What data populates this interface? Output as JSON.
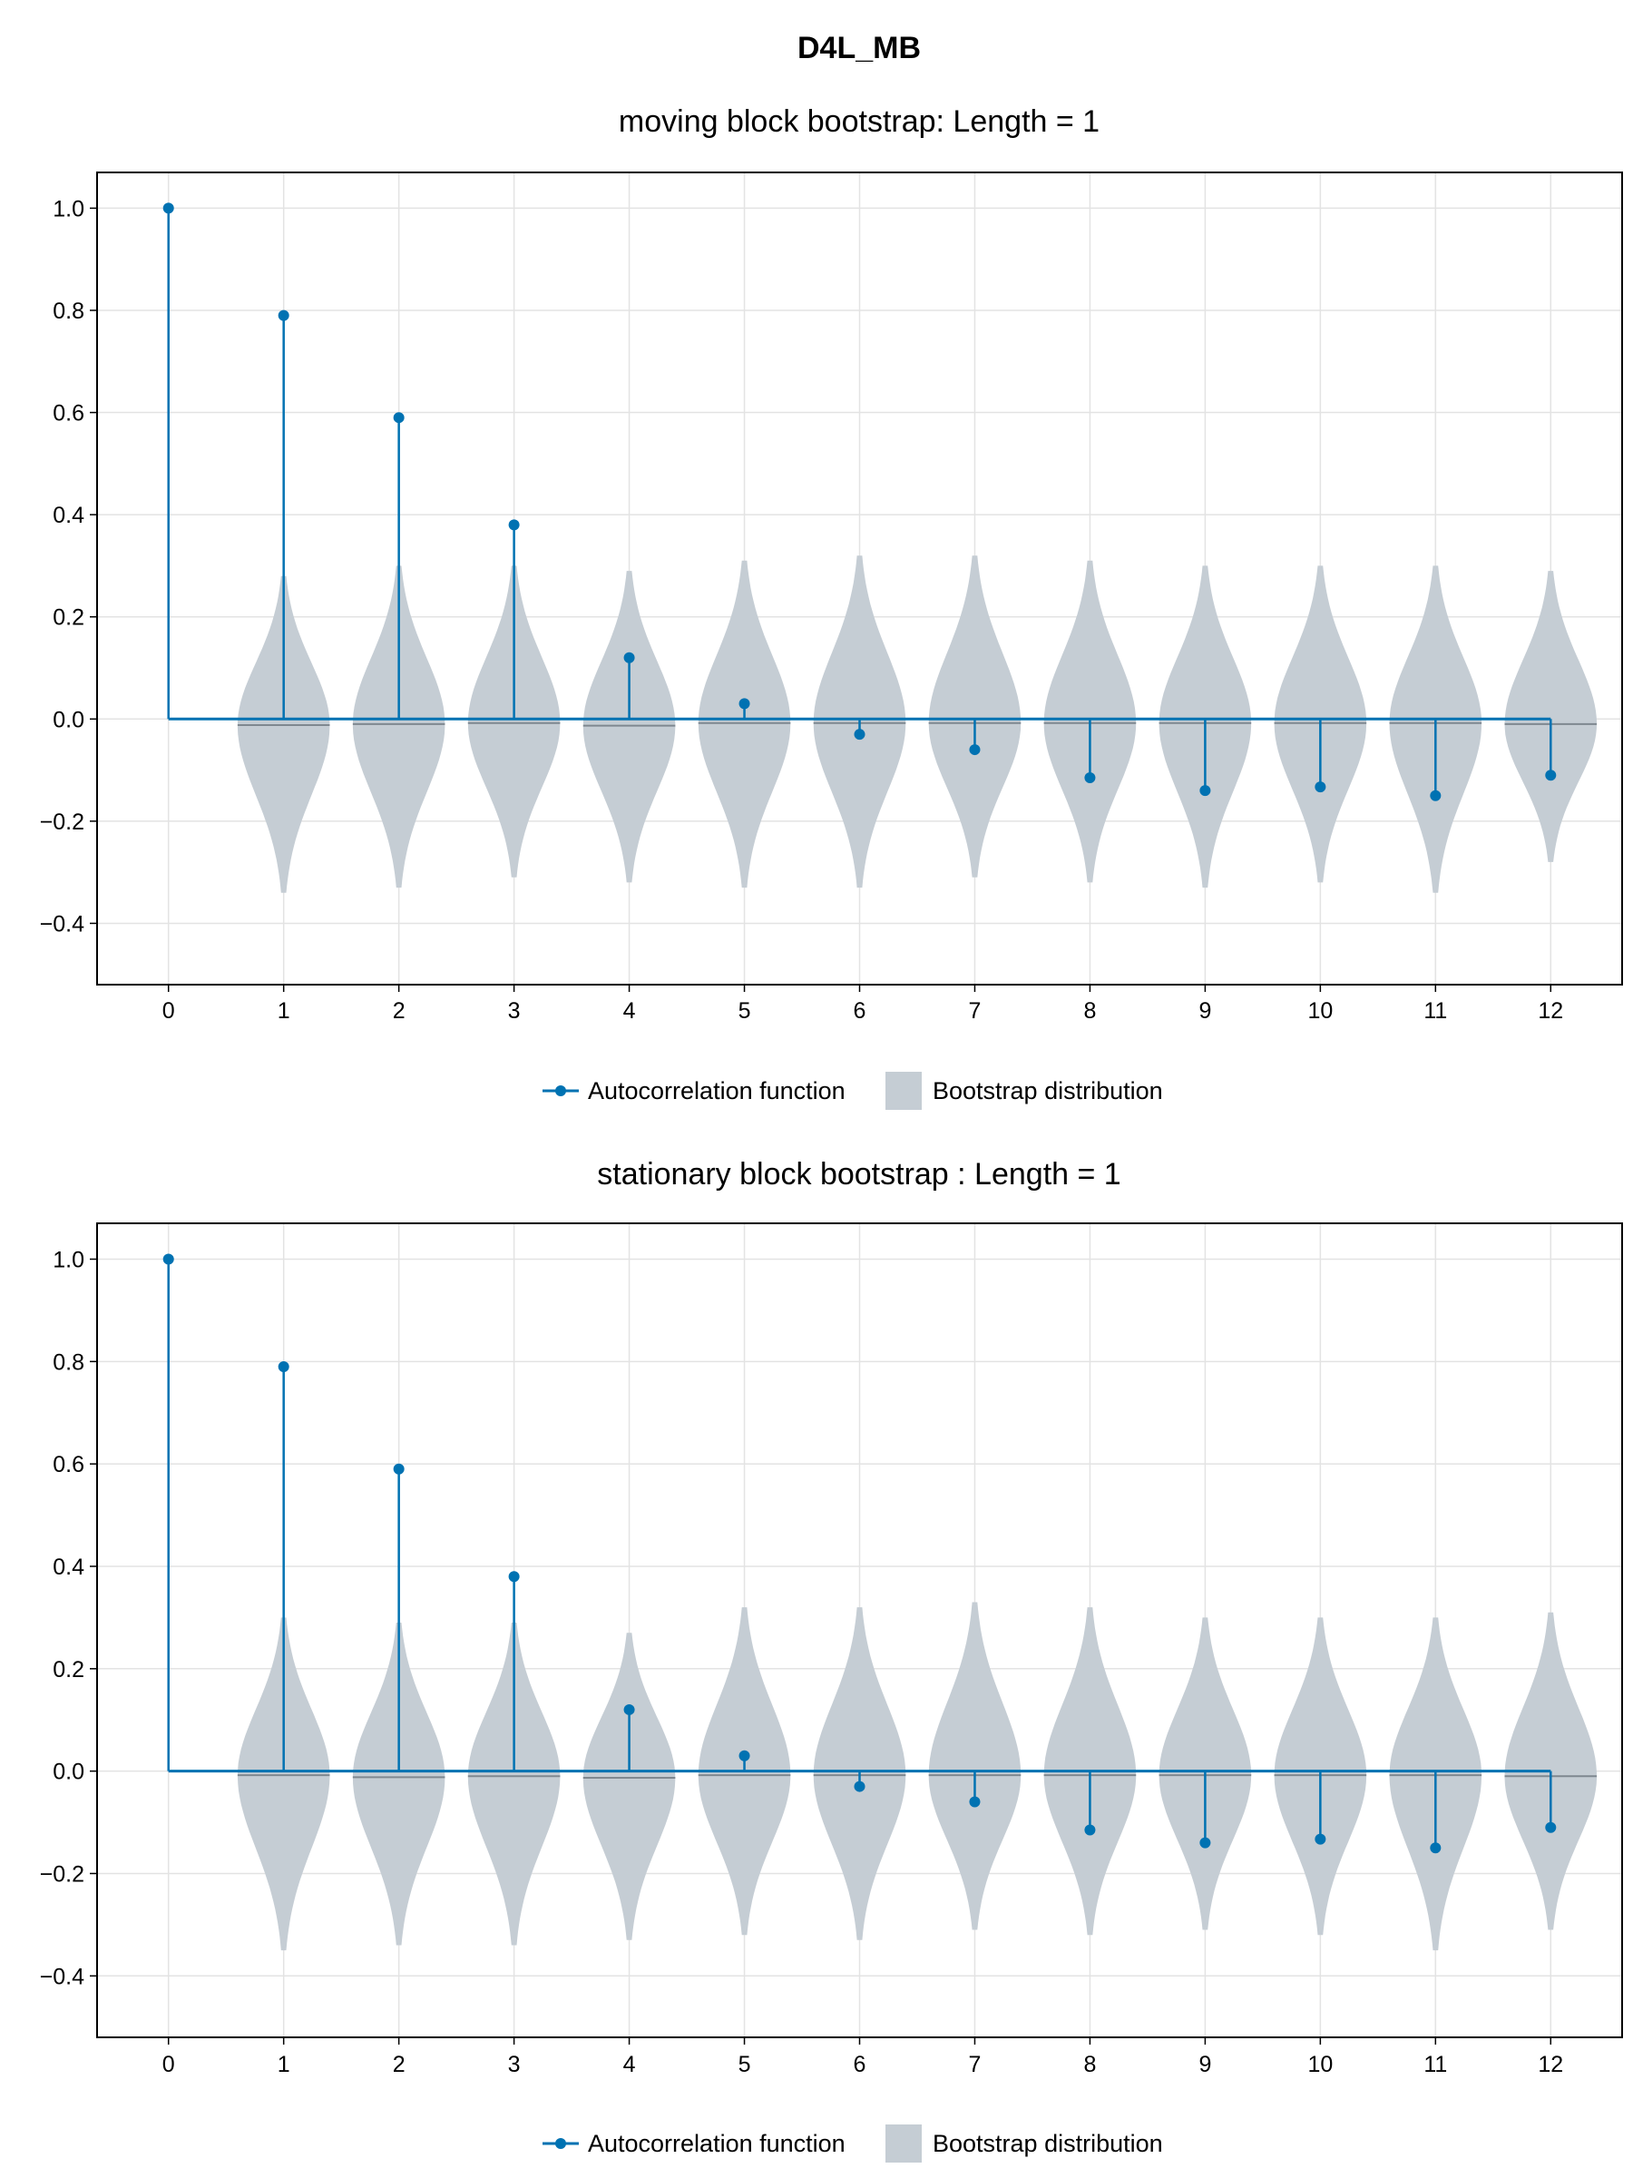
{
  "figure": {
    "title": "D4L_MB"
  },
  "legend": {
    "acf_label": "Autocorrelation function",
    "bootstrap_label": "Bootstrap distribution"
  },
  "colors": {
    "acf": "#0072b2",
    "violin": "#c5cdd4",
    "median_line": "#7f8890",
    "grid": "#e3e3e3",
    "axis": "#000000"
  },
  "chart_data": [
    {
      "type": "stem+violin",
      "title": "moving block bootstrap: Length = 1",
      "xlabel": "",
      "ylabel": "",
      "xlim": [
        -0.62,
        12.62
      ],
      "ylim": [
        -0.52,
        1.07
      ],
      "xticks": [
        0,
        1,
        2,
        3,
        4,
        5,
        6,
        7,
        8,
        9,
        10,
        11,
        12
      ],
      "yticks": [
        -0.4,
        -0.2,
        0.0,
        0.2,
        0.4,
        0.6,
        0.8,
        1.0
      ],
      "ytick_labels": [
        "−0.4",
        "−0.2",
        "0.0",
        "0.2",
        "0.4",
        "0.6",
        "0.8",
        "1.0"
      ],
      "grid": true,
      "legend_position": "bottom-center",
      "series": [
        {
          "name": "Autocorrelation function",
          "lags": [
            0,
            1,
            2,
            3,
            4,
            5,
            6,
            7,
            8,
            9,
            10,
            11,
            12
          ],
          "values": [
            1.0,
            0.79,
            0.59,
            0.38,
            0.12,
            0.03,
            -0.03,
            -0.06,
            -0.115,
            -0.14,
            -0.133,
            -0.15,
            -0.11
          ]
        },
        {
          "name": "Bootstrap distribution",
          "lags": [
            1,
            2,
            3,
            4,
            5,
            6,
            7,
            8,
            9,
            10,
            11,
            12
          ],
          "min": [
            -0.34,
            -0.33,
            -0.31,
            -0.32,
            -0.33,
            -0.33,
            -0.31,
            -0.32,
            -0.33,
            -0.32,
            -0.34,
            -0.28
          ],
          "max": [
            0.28,
            0.3,
            0.3,
            0.29,
            0.31,
            0.32,
            0.32,
            0.31,
            0.3,
            0.3,
            0.3,
            0.29
          ],
          "median": [
            -0.012,
            -0.01,
            -0.008,
            -0.013,
            -0.008,
            -0.008,
            -0.008,
            -0.008,
            -0.008,
            -0.008,
            -0.008,
            -0.01
          ]
        }
      ]
    },
    {
      "type": "stem+violin",
      "title": "stationary block bootstrap : Length = 1",
      "xlabel": "",
      "ylabel": "",
      "xlim": [
        -0.62,
        12.62
      ],
      "ylim": [
        -0.52,
        1.07
      ],
      "xticks": [
        0,
        1,
        2,
        3,
        4,
        5,
        6,
        7,
        8,
        9,
        10,
        11,
        12
      ],
      "yticks": [
        -0.4,
        -0.2,
        0.0,
        0.2,
        0.4,
        0.6,
        0.8,
        1.0
      ],
      "ytick_labels": [
        "−0.4",
        "−0.2",
        "0.0",
        "0.2",
        "0.4",
        "0.6",
        "0.8",
        "1.0"
      ],
      "grid": true,
      "legend_position": "bottom-center",
      "series": [
        {
          "name": "Autocorrelation function",
          "lags": [
            0,
            1,
            2,
            3,
            4,
            5,
            6,
            7,
            8,
            9,
            10,
            11,
            12
          ],
          "values": [
            1.0,
            0.79,
            0.59,
            0.38,
            0.12,
            0.03,
            -0.03,
            -0.06,
            -0.115,
            -0.14,
            -0.133,
            -0.15,
            -0.11
          ]
        },
        {
          "name": "Bootstrap distribution",
          "lags": [
            1,
            2,
            3,
            4,
            5,
            6,
            7,
            8,
            9,
            10,
            11,
            12
          ],
          "min": [
            -0.35,
            -0.34,
            -0.34,
            -0.33,
            -0.32,
            -0.33,
            -0.31,
            -0.32,
            -0.31,
            -0.32,
            -0.35,
            -0.31
          ],
          "max": [
            0.3,
            0.29,
            0.29,
            0.27,
            0.32,
            0.32,
            0.33,
            0.32,
            0.3,
            0.3,
            0.3,
            0.31
          ],
          "median": [
            -0.008,
            -0.012,
            -0.01,
            -0.013,
            -0.008,
            -0.008,
            -0.008,
            -0.008,
            -0.008,
            -0.008,
            -0.008,
            -0.01
          ]
        }
      ]
    }
  ]
}
